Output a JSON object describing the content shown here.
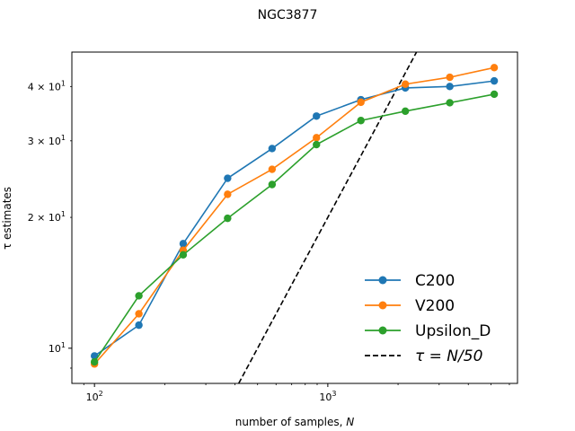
{
  "chart_data": {
    "type": "line",
    "title": "NGC3877",
    "xlabel": "number of samples, N",
    "ylabel": "τ estimates",
    "xscale": "log",
    "yscale": "log",
    "xlim": [
      80,
      6500
    ],
    "ylim": [
      8.3,
      48
    ],
    "x": [
      100,
      155,
      240,
      372,
      577,
      894,
      1386,
      2149,
      3332,
      5166
    ],
    "xticks": [
      {
        "value": 100,
        "base": "10",
        "exp": "2"
      },
      {
        "value": 1000,
        "base": "10",
        "exp": "3"
      }
    ],
    "yticks": [
      {
        "value": 10,
        "base": "10",
        "exp": "1",
        "prefix": ""
      },
      {
        "value": 20,
        "base": "10",
        "exp": "1",
        "prefix": "2 × "
      },
      {
        "value": 30,
        "base": "10",
        "exp": "1",
        "prefix": "3 × "
      },
      {
        "value": 40,
        "base": "10",
        "exp": "1",
        "prefix": "4 × "
      }
    ],
    "series": [
      {
        "name": "C200",
        "color": "#1f77b4",
        "values": [
          9.6,
          11.3,
          17.4,
          24.6,
          28.8,
          34.2,
          37.3,
          39.7,
          40.0,
          41.2
        ]
      },
      {
        "name": "V200",
        "color": "#ff7f0e",
        "values": [
          9.2,
          12.0,
          16.8,
          22.6,
          25.8,
          30.5,
          36.8,
          40.5,
          42.0,
          44.2
        ]
      },
      {
        "name": "Upsilon_D",
        "color": "#2ca02c",
        "values": [
          9.3,
          13.2,
          16.4,
          19.9,
          23.8,
          29.4,
          33.4,
          35.1,
          36.7,
          38.4
        ]
      }
    ],
    "reference_line": {
      "name": "τ = N/50",
      "divisor": 50,
      "color": "#000000",
      "style": "dashed"
    },
    "legend": {
      "position": "lower-right"
    },
    "grid": false
  }
}
